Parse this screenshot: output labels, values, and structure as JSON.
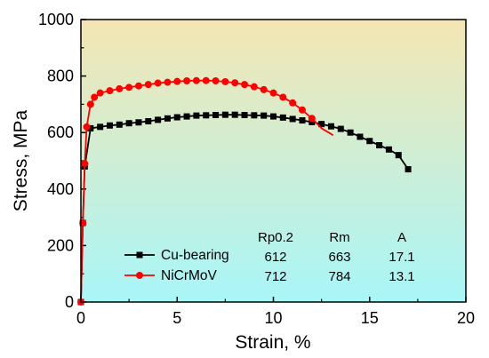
{
  "chart_data": {
    "type": "line",
    "xlabel": "Strain, %",
    "ylabel": "Stress, MPa",
    "xlim": [
      0,
      20
    ],
    "ylim": [
      0,
      1000
    ],
    "xticks": [
      0,
      5,
      10,
      15,
      20
    ],
    "yticks": [
      0,
      200,
      400,
      600,
      800,
      1000
    ],
    "xtick_labels": [
      "0",
      "5",
      "10",
      "15",
      "20"
    ],
    "ytick_labels": [
      "0",
      "200",
      "400",
      "600",
      "800",
      "1000"
    ],
    "background_gradient": [
      "#f4e6b3",
      "#a8f6f8"
    ],
    "grid": false,
    "legend_position": "bottom-center",
    "series": [
      {
        "name": "Cu-bearing",
        "color": "#000000",
        "marker": "square",
        "x": [
          0.0,
          0.1,
          0.2,
          0.5,
          1.0,
          1.5,
          2.0,
          2.5,
          3.0,
          3.5,
          4.0,
          4.5,
          5.0,
          5.5,
          6.0,
          6.5,
          7.0,
          7.5,
          8.0,
          8.5,
          9.0,
          9.5,
          10.0,
          10.5,
          11.0,
          11.5,
          12.0,
          12.5,
          13.0,
          13.5,
          14.0,
          14.5,
          15.0,
          15.5,
          16.0,
          16.5,
          17.0
        ],
        "y": [
          0,
          280,
          480,
          615,
          620,
          625,
          628,
          633,
          636,
          640,
          645,
          650,
          654,
          657,
          660,
          661,
          662,
          663,
          663,
          662,
          661,
          660,
          657,
          653,
          648,
          643,
          637,
          630,
          622,
          613,
          600,
          585,
          570,
          555,
          540,
          520,
          470
        ]
      },
      {
        "name": "NiCrMoV",
        "color": "#ff0000",
        "marker": "circle",
        "x": [
          0.0,
          0.1,
          0.2,
          0.3,
          0.5,
          0.7,
          1.0,
          1.5,
          2.0,
          2.5,
          3.0,
          3.5,
          4.0,
          4.5,
          5.0,
          5.5,
          6.0,
          6.5,
          7.0,
          7.5,
          8.0,
          8.5,
          9.0,
          9.5,
          10.0,
          10.5,
          11.0,
          11.5,
          12.0,
          12.5,
          13.0,
          13.1
        ],
        "y": [
          0,
          280,
          490,
          620,
          700,
          725,
          740,
          748,
          755,
          760,
          765,
          770,
          775,
          778,
          781,
          783,
          784,
          784,
          783,
          780,
          776,
          770,
          762,
          752,
          740,
          725,
          705,
          680,
          650,
          615,
          595,
          590
        ],
        "marker_x": [
          0.0,
          0.1,
          0.2,
          0.3,
          0.5,
          0.7,
          1.0,
          1.5,
          2.0,
          2.5,
          3.0,
          3.5,
          4.0,
          4.5,
          5.0,
          5.5,
          6.0,
          6.5,
          7.0,
          7.5,
          8.0,
          8.5,
          9.0,
          9.5,
          10.0,
          10.5,
          11.0,
          11.5,
          12.0
        ],
        "marker_y": [
          0,
          280,
          490,
          620,
          700,
          725,
          740,
          748,
          755,
          760,
          765,
          770,
          775,
          778,
          781,
          783,
          784,
          784,
          783,
          780,
          776,
          770,
          762,
          752,
          740,
          725,
          705,
          680,
          650
        ]
      }
    ],
    "legend_table": {
      "headers": [
        "Rp0.2",
        "Rm",
        "A"
      ],
      "rows": [
        {
          "name": "Cu-bearing",
          "values": [
            "612",
            "663",
            "17.1"
          ]
        },
        {
          "name": "NiCrMoV",
          "values": [
            "712",
            "784",
            "13.1"
          ]
        }
      ]
    }
  }
}
